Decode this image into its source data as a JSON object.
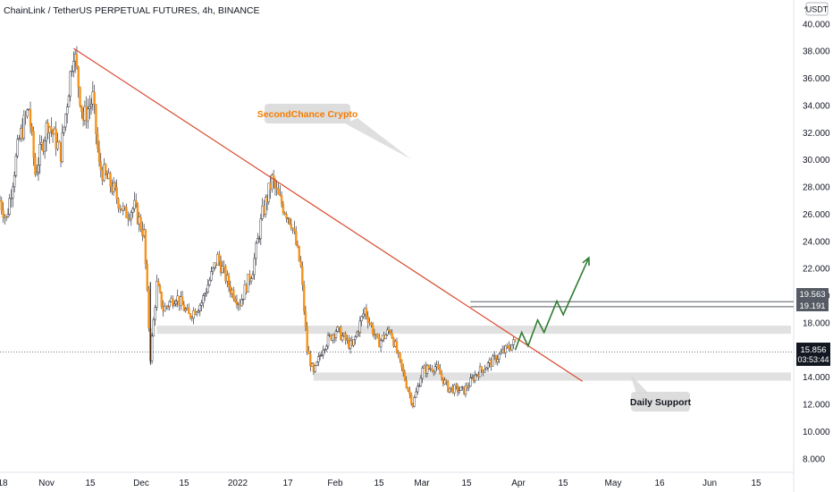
{
  "header": {
    "title": "ChainLink / TetherUS PERPETUAL FUTURES, 4h, BINANCE",
    "currency_badge": "USDT",
    "price_scale_top_label": "4"
  },
  "colors": {
    "up": "#26a69a",
    "candle_up_fill": "#ffffff",
    "candle_down": "#f7931a",
    "wick": "#131722",
    "trendline": "#d84a2e",
    "projection": "#2e7d32",
    "zone": "#dcdcdc",
    "annotation_text": "#f57c00"
  },
  "annotations": {
    "brand_label": "SecondChance Crypto",
    "support_label": "Daily Support"
  },
  "price_labels": {
    "level_1": "19.563",
    "level_2": "19.191",
    "current_price": "15.856",
    "countdown": "03:53:44"
  },
  "chart_data": {
    "type": "candlestick",
    "title": "ChainLink / TetherUS PERPETUAL FUTURES, 4h, BINANCE",
    "x_ticks": [
      "18",
      "Nov",
      "15",
      "Dec",
      "15",
      "2022",
      "17",
      "Feb",
      "15",
      "Mar",
      "15",
      "Apr",
      "15",
      "May",
      "16",
      "Jun",
      "15"
    ],
    "y_ticks": [
      "8.000",
      "10.000",
      "12.000",
      "14.000",
      "16.000",
      "18.000",
      "20.000",
      "22.000",
      "24.000",
      "26.000",
      "28.000",
      "30.000",
      "32.000",
      "34.000",
      "36.000",
      "38.000",
      "40.000"
    ],
    "ylim": [
      7,
      41.5
    ],
    "xlim": [
      "2021-10-18",
      "2022-06-23"
    ],
    "grid": false,
    "price_path": [
      {
        "date": "2021-10-18",
        "price": 27.0
      },
      {
        "date": "2021-10-20",
        "price": 25.6
      },
      {
        "date": "2021-10-24",
        "price": 31.5
      },
      {
        "date": "2021-10-27",
        "price": 33.8
      },
      {
        "date": "2021-10-29",
        "price": 29.0
      },
      {
        "date": "2021-11-02",
        "price": 32.8
      },
      {
        "date": "2021-11-06",
        "price": 30.5
      },
      {
        "date": "2021-11-10",
        "price": 38.2
      },
      {
        "date": "2021-11-13",
        "price": 33.0
      },
      {
        "date": "2021-11-16",
        "price": 34.5
      },
      {
        "date": "2021-11-18",
        "price": 29.5
      },
      {
        "date": "2021-11-22",
        "price": 28.0
      },
      {
        "date": "2021-11-26",
        "price": 26.0
      },
      {
        "date": "2021-11-29",
        "price": 26.5
      },
      {
        "date": "2021-12-02",
        "price": 24.5
      },
      {
        "date": "2021-12-04",
        "price": 15.5
      },
      {
        "date": "2021-12-06",
        "price": 20.8
      },
      {
        "date": "2021-12-08",
        "price": 19.0
      },
      {
        "date": "2021-12-12",
        "price": 20.0
      },
      {
        "date": "2021-12-16",
        "price": 18.5
      },
      {
        "date": "2021-12-20",
        "price": 19.5
      },
      {
        "date": "2021-12-25",
        "price": 22.8
      },
      {
        "date": "2021-12-29",
        "price": 20.5
      },
      {
        "date": "2022-01-01",
        "price": 19.5
      },
      {
        "date": "2022-01-05",
        "price": 22.0
      },
      {
        "date": "2022-01-08",
        "price": 26.0
      },
      {
        "date": "2022-01-11",
        "price": 28.5
      },
      {
        "date": "2022-01-13",
        "price": 27.2
      },
      {
        "date": "2022-01-17",
        "price": 25.5
      },
      {
        "date": "2022-01-20",
        "price": 22.0
      },
      {
        "date": "2022-01-22",
        "price": 16.0
      },
      {
        "date": "2022-01-24",
        "price": 14.2
      },
      {
        "date": "2022-01-27",
        "price": 16.3
      },
      {
        "date": "2022-01-31",
        "price": 17.5
      },
      {
        "date": "2022-02-05",
        "price": 16.2
      },
      {
        "date": "2022-02-09",
        "price": 19.0
      },
      {
        "date": "2022-02-13",
        "price": 16.5
      },
      {
        "date": "2022-02-17",
        "price": 17.5
      },
      {
        "date": "2022-02-20",
        "price": 15.0
      },
      {
        "date": "2022-02-24",
        "price": 12.0
      },
      {
        "date": "2022-02-27",
        "price": 14.5
      },
      {
        "date": "2022-03-03",
        "price": 14.8
      },
      {
        "date": "2022-03-07",
        "price": 13.2
      },
      {
        "date": "2022-03-12",
        "price": 13.0
      },
      {
        "date": "2022-03-16",
        "price": 14.3
      },
      {
        "date": "2022-03-21",
        "price": 15.2
      },
      {
        "date": "2022-03-26",
        "price": 16.2
      },
      {
        "date": "2022-03-28",
        "price": 16.6
      }
    ],
    "trendline": {
      "from": {
        "date": "2021-11-10",
        "price": 38.2
      },
      "to": {
        "date": "2022-04-18",
        "price": 13.7
      }
    },
    "projection_path": [
      {
        "date": "2022-03-28",
        "price": 16.0
      },
      {
        "date": "2022-03-30",
        "price": 17.3
      },
      {
        "date": "2022-04-01",
        "price": 16.3
      },
      {
        "date": "2022-04-04",
        "price": 18.2
      },
      {
        "date": "2022-04-06",
        "price": 17.3
      },
      {
        "date": "2022-04-10",
        "price": 19.6
      },
      {
        "date": "2022-04-12",
        "price": 18.6
      },
      {
        "date": "2022-04-20",
        "price": 22.8
      }
    ],
    "zones": [
      {
        "name": "resistance_zone",
        "from_date": "2021-12-06",
        "top": 17.8,
        "bottom": 17.2
      },
      {
        "name": "support_zone",
        "from_date": "2022-01-24",
        "top": 14.35,
        "bottom": 13.75
      }
    ],
    "horizontal_levels": [
      19.563,
      19.191
    ],
    "current_price": 15.856
  }
}
